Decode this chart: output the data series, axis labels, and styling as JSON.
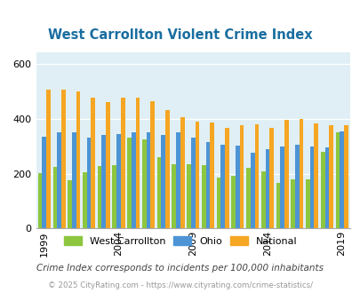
{
  "title": "West Carrollton Violent Crime Index",
  "subtitle": "Crime Index corresponds to incidents per 100,000 inhabitants",
  "footer": "© 2025 CityRating.com - https://www.cityrating.com/crime-statistics/",
  "years": [
    1999,
    2000,
    2001,
    2002,
    2003,
    2004,
    2005,
    2006,
    2007,
    2008,
    2009,
    2010,
    2011,
    2012,
    2013,
    2014,
    2015,
    2016,
    2017,
    2018,
    2019
  ],
  "west_carrollton": [
    202,
    225,
    175,
    205,
    228,
    230,
    330,
    325,
    260,
    235,
    235,
    230,
    185,
    192,
    220,
    208,
    165,
    178,
    178,
    280,
    350
  ],
  "ohio": [
    335,
    350,
    350,
    330,
    340,
    345,
    350,
    350,
    340,
    350,
    330,
    315,
    305,
    303,
    275,
    290,
    300,
    305,
    300,
    295,
    355
  ],
  "national": [
    507,
    507,
    500,
    475,
    460,
    475,
    475,
    465,
    430,
    405,
    390,
    385,
    365,
    375,
    380,
    365,
    397,
    400,
    383,
    375,
    375
  ],
  "bar_width": 0.28,
  "ylim": [
    0,
    640
  ],
  "yticks": [
    0,
    200,
    400,
    600
  ],
  "bg_color": "#e0eff5",
  "wc_color": "#8dc63f",
  "ohio_color": "#4d94d5",
  "national_color": "#f5a623",
  "title_color": "#1a6ea0",
  "subtitle_color": "#444444",
  "footer_color": "#999999",
  "xlabel_years": [
    1999,
    2004,
    2009,
    2014,
    2019
  ],
  "legend_labels": [
    "West Carrollton",
    "Ohio",
    "National"
  ]
}
